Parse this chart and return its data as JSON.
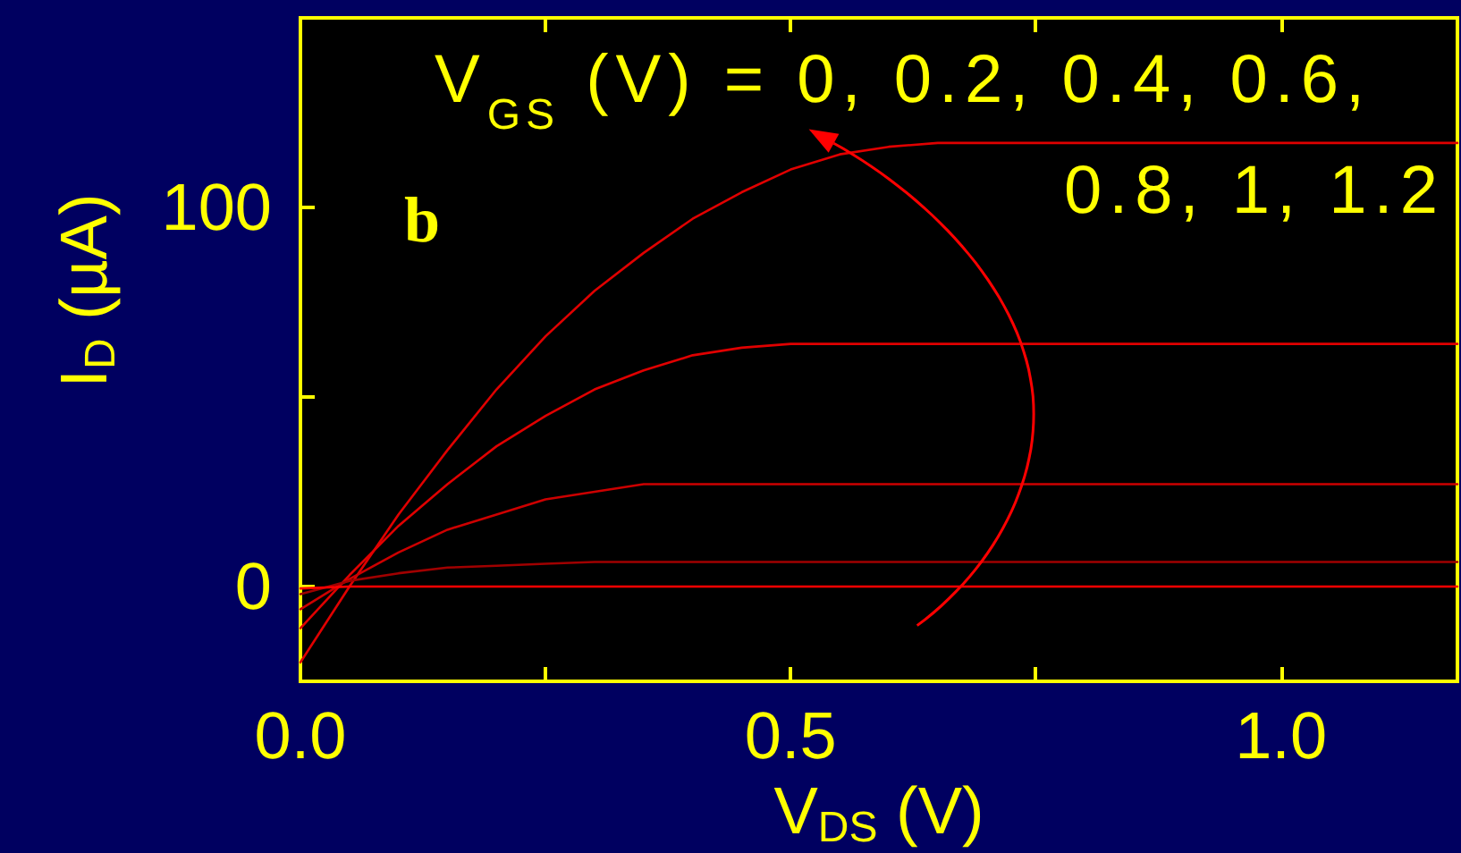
{
  "chart_data": {
    "type": "line",
    "xlabel": "V$_{DS}$ (V)",
    "ylabel": "I$_{D}$ (µA)",
    "annotations": [
      "V$_{GS}$ (V) = 0, 0.2, 0.4, 0.6, 0.8, 1, 1.2",
      "b"
    ],
    "xlim": [
      0,
      1.18
    ],
    "xticks": [
      {
        "value": 0,
        "label": "0.0"
      },
      {
        "value": 0.25,
        "label": null
      },
      {
        "value": 0.5,
        "label": "0.5"
      },
      {
        "value": 0.75,
        "label": null
      },
      {
        "value": 1,
        "label": "1.0"
      }
    ],
    "ylim": [
      -25,
      150
    ],
    "yticks": [
      0,
      {
        "value": 50,
        "label": null
      },
      100
    ],
    "marker": "none",
    "line_style": "solid",
    "x": [
      0,
      0.05,
      0.1,
      0.15,
      0.2,
      0.25,
      0.3,
      0.35,
      0.4,
      0.45,
      0.5,
      0.55,
      0.6,
      0.65,
      0.7,
      0.8,
      0.9,
      1,
      1.1,
      1.18
    ],
    "series": [
      {
        "color": "#e00000",
        "values": [
          -20,
          0,
          19,
          36,
          52,
          66,
          78,
          88,
          97,
          104,
          110,
          114,
          116,
          117,
          117,
          117,
          117,
          117,
          117,
          117
        ]
      },
      {
        "color": "#e00000",
        "values": [
          -11,
          3,
          16,
          27,
          37,
          45,
          52,
          57,
          61,
          63,
          64,
          64,
          64,
          64,
          64,
          64,
          64,
          64,
          64,
          64
        ]
      },
      {
        "color": "#cc0000",
        "values": [
          -6,
          2,
          9,
          15,
          19,
          23,
          25,
          27,
          27,
          27,
          27,
          27,
          27,
          27,
          27,
          27,
          27,
          27,
          27,
          27
        ]
      },
      {
        "color": "#a00000",
        "values": [
          -2,
          1.5,
          3.5,
          5,
          5.5,
          6,
          6.5,
          6.5,
          6.5,
          6.5,
          6.5,
          6.5,
          6.5,
          6.5,
          6.5,
          6.5,
          6.5,
          6.5,
          6.5,
          6.5
        ]
      },
      {
        "color": "#ff0000",
        "values": [
          -0.5,
          0,
          0,
          0,
          0,
          0,
          0,
          0,
          0,
          0,
          0,
          0,
          0,
          0,
          0,
          0,
          0,
          0,
          0,
          0
        ]
      }
    ]
  }
}
